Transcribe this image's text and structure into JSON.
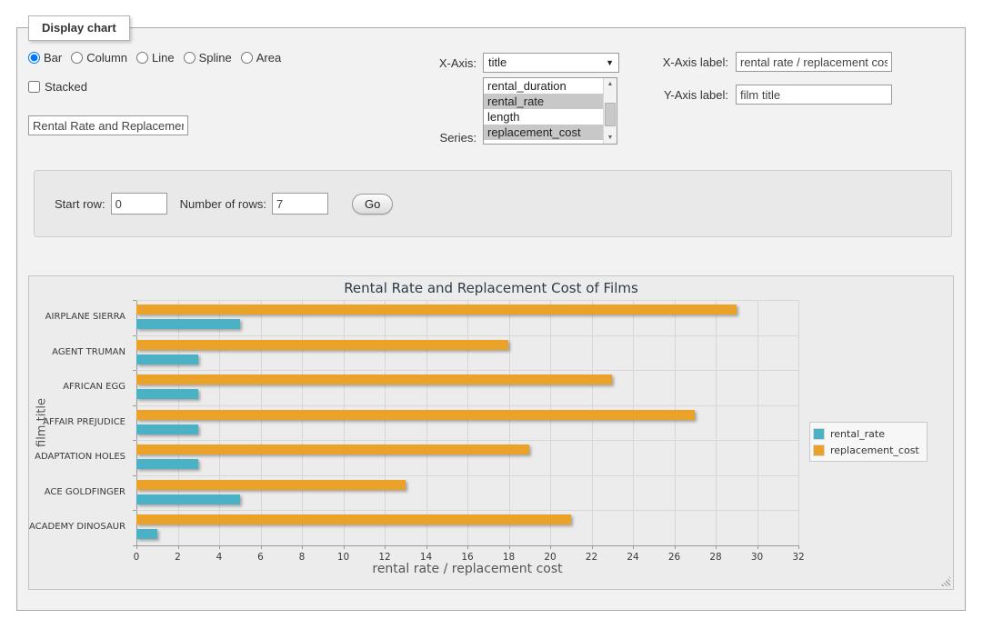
{
  "panel": {
    "legend": "Display chart"
  },
  "controls": {
    "chart_type": {
      "options": [
        "Bar",
        "Column",
        "Line",
        "Spline",
        "Area"
      ],
      "selected": "Bar"
    },
    "stacked": {
      "label": "Stacked",
      "checked": false
    },
    "chart_title_input": {
      "value": "Rental Rate and Replacement Cost of Films"
    },
    "x_axis": {
      "label": "X-Axis:",
      "selected": "title"
    },
    "series": {
      "label": "Series:",
      "options": [
        "rental_duration",
        "rental_rate",
        "length",
        "replacement_cost"
      ],
      "selected": [
        "rental_rate",
        "replacement_cost"
      ]
    },
    "x_axis_label": {
      "label": "X-Axis label:",
      "value": "rental rate / replacement cost"
    },
    "y_axis_label": {
      "label": "Y-Axis label:",
      "value": "film title"
    },
    "rows": {
      "start_row_label": "Start row:",
      "start_row_value": "0",
      "num_rows_label": "Number of rows:",
      "num_rows_value": "7",
      "go_label": "Go"
    }
  },
  "colors": {
    "rental_rate": "#4bb2c5",
    "replacement_cost": "#eaa228",
    "grid": "#d7d7d7",
    "axis": "#9a9a9a",
    "chart_background": "#ececec"
  },
  "chart_data": {
    "type": "bar",
    "title": "Rental Rate and Replacement Cost of Films",
    "xlabel": "rental rate / replacement cost",
    "ylabel": "film title",
    "categories": [
      "AIRPLANE SIERRA",
      "AGENT TRUMAN",
      "AFRICAN EGG",
      "AFFAIR PREJUDICE",
      "ADAPTATION HOLES",
      "ACE GOLDFINGER",
      "ACADEMY DINOSAUR"
    ],
    "series": [
      {
        "name": "rental_rate",
        "color": "#4bb2c5",
        "values": [
          4.99,
          2.99,
          2.99,
          2.99,
          2.99,
          4.99,
          0.99
        ]
      },
      {
        "name": "replacement_cost",
        "color": "#eaa228",
        "values": [
          28.99,
          17.99,
          22.99,
          26.99,
          18.99,
          12.99,
          20.99
        ]
      }
    ],
    "group_draw_order": [
      "replacement_cost",
      "rental_rate"
    ],
    "xlim": [
      0,
      32
    ],
    "x_ticks": [
      0,
      2,
      4,
      6,
      8,
      10,
      12,
      14,
      16,
      18,
      20,
      22,
      24,
      26,
      28,
      30,
      32
    ],
    "grid": true,
    "legend_position": "right"
  }
}
